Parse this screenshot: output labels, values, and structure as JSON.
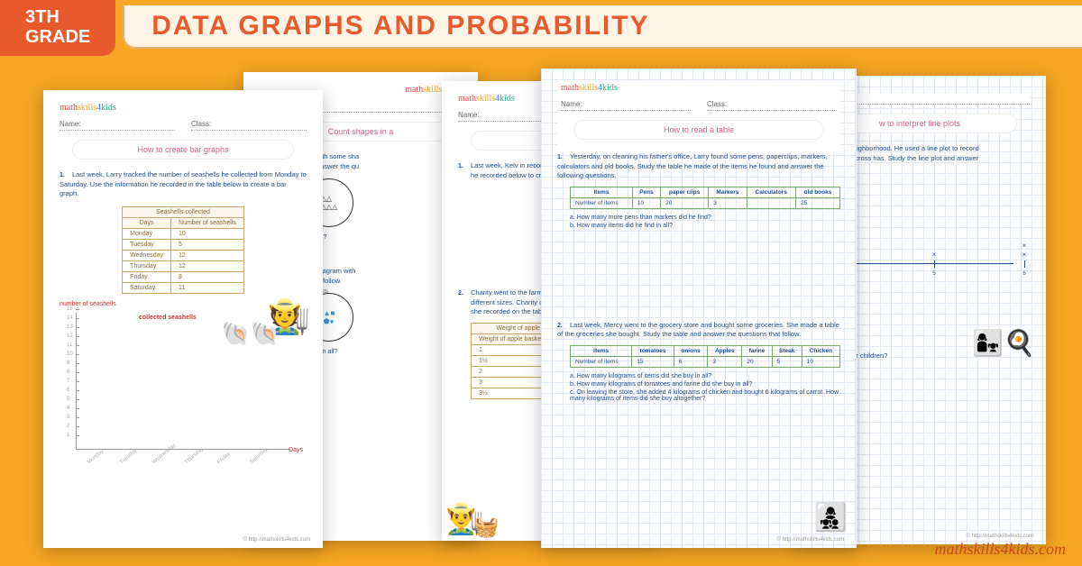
{
  "header": {
    "grade_line1": "3TH",
    "grade_line2": "GRADE",
    "title": "DATA GRAPHS AND PROBABILITY"
  },
  "watermark": "mathskills4kids.com",
  "footer_url": "© http://mathskills4kids.com",
  "logo_text": "mathskills4kids",
  "fields": {
    "name": "Name:",
    "class": "Class:"
  },
  "ws1": {
    "title": "How to create bar graphs",
    "q1": "Last week, Larry tracked the number of seashells he collected from Monday to Saturday. Use the information he recorded in the table below to create a bar graph.",
    "table_caption": "Seashells collected",
    "col1": "Days",
    "col2": "Number of seashells",
    "rows": [
      [
        "Monday",
        "10"
      ],
      [
        "Tuesday",
        "5"
      ],
      [
        "Wednesday",
        "12"
      ],
      [
        "Thursday",
        "12"
      ],
      [
        "Friday",
        "9"
      ],
      [
        "Saturday",
        "11"
      ]
    ],
    "ylabel": "number of seashells",
    "chart_title": "collected seashells",
    "xlabel": "Days",
    "ymax": 15,
    "ystep": 1,
    "days": [
      "Monday",
      "Tuesday",
      "Wednesday",
      "Thursday",
      "Friday",
      "Saturday"
    ]
  },
  "ws2": {
    "title": "Count shapes in a",
    "q1": "w a Venn diagram with some sha",
    "q1b": "Venn diagram and answer the qu",
    "sub_a": "triangles are there?",
    "sub_c": "c.   H",
    "q2": "Peter drew a Venn diagram with",
    "q2b": "er the questions that follow.",
    "label_blue": "blue objects",
    "sub_b": "objects are there in all?"
  },
  "ws3": {
    "title": "How",
    "q1": "Last week, Kelv in recorde",
    "q1b": "he recorded below to cre",
    "q2": "Charity went to the farm",
    "q2b": "different sizes. Charity u",
    "q2c": "she recorded on the tabl",
    "tcap": "Weight of apple baskets",
    "tcol": "Weight of apple baskets (kg)",
    "trows": [
      "1",
      "1½",
      "2",
      "3",
      "3½"
    ]
  },
  "ws4": {
    "title": "How to read a table",
    "q1": "Yesterday, on cleaning his father's office, Larry found some pens, paperclips, markers, calculators and old books. Study the table he made of the items he found and answer the following questions.",
    "t1_headers": [
      "Items",
      "Pens",
      "paper clips",
      "Markers",
      "Calculators",
      "old books"
    ],
    "t1_row": [
      "Number of items",
      "10",
      "20",
      "3",
      "",
      "25"
    ],
    "q1a": "How many more pens than markers did he find?",
    "q1b": "How many items did he find in all?",
    "q2": "Last week, Mercy went to the grocery store and bought some groceries. She made a table of the groceries she bought. Study the table and answer the questions that follow.",
    "t2_headers": [
      "Items",
      "tomatoes",
      "onions",
      "Apples",
      "farine",
      "Steak",
      "Chicken"
    ],
    "t2_row": [
      "Number of items",
      "15",
      "6",
      "3",
      "20",
      "5",
      "10"
    ],
    "q2a": "How many kilograms of items did she buy in all?",
    "q2b": "How many kilograms of tomatoes and farine did she buy in all?",
    "q2c": "On leaving the store, she added 4 kilograms of chicken and bought 6 kilograms of carrot. How many kilograms of items did she buy altogether?"
  },
  "ws5": {
    "title": "w to interpret line plots",
    "q1": "us in a small neighborhood. He used a line plot to record",
    "q1b": "mily he came across has. Study the line plot and answer",
    "ticks": [
      4,
      5,
      6
    ],
    "marks": [
      [
        5,
        1
      ],
      [
        6,
        2
      ]
    ],
    "q_children": "o children.",
    "q_four": "or less than four children?",
    "q_all": "e in all?"
  }
}
